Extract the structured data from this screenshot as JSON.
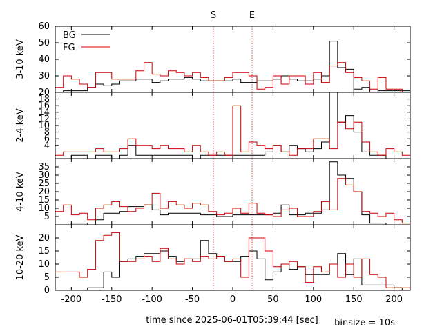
{
  "chart_data": {
    "type": "line",
    "step": true,
    "xlabel": "time since 2025-06-01T05:39:44 [sec]",
    "binsize_label": "binsize = 10s",
    "x_ticks": [
      -200,
      -150,
      -100,
      -50,
      0,
      50,
      100,
      150,
      200
    ],
    "xlim": [
      -220,
      220
    ],
    "markers": [
      {
        "label": "S",
        "x": -24
      },
      {
        "label": "E",
        "x": 24
      }
    ],
    "legend": {
      "placement": "top-left",
      "entries": [
        {
          "name": "BG",
          "color": "#000000"
        },
        {
          "name": "FG",
          "color": "#cc0000"
        }
      ]
    },
    "bin_edges": [
      -220,
      -210,
      -200,
      -190,
      -180,
      -170,
      -160,
      -150,
      -140,
      -130,
      -120,
      -110,
      -100,
      -90,
      -80,
      -70,
      -60,
      -50,
      -40,
      -30,
      -20,
      -10,
      0,
      10,
      20,
      30,
      40,
      50,
      60,
      70,
      80,
      90,
      100,
      110,
      120,
      130,
      140,
      150,
      160,
      170,
      180,
      190,
      200,
      210,
      220
    ],
    "panels": [
      {
        "ylabel": "3-10 keV",
        "ylim": [
          20,
          60
        ],
        "yticks": [
          20,
          30,
          40,
          50,
          60
        ],
        "series": [
          {
            "name": "BG",
            "color": "#000000",
            "values": [
              20,
              21,
              21,
              21,
              23,
              25,
              24,
              25,
              27,
              27,
              28,
              28,
              26,
              27,
              28,
              28,
              29,
              28,
              27,
              27,
              27,
              27,
              28,
              26,
              26,
              27,
              27,
              28,
              30,
              28,
              27,
              27,
              28,
              30,
              51,
              35,
              34,
              22,
              23,
              20,
              21,
              21,
              21,
              21
            ]
          },
          {
            "name": "FG",
            "color": "#cc0000",
            "values": [
              23,
              30,
              28,
              25,
              23,
              32,
              32,
              28,
              28,
              28,
              33,
              38,
              31,
              30,
              33,
              32,
              30,
              32,
              29,
              27,
              27,
              29,
              32,
              32,
              30,
              22,
              23,
              30,
              25,
              30,
              30,
              25,
              32,
              26,
              36,
              38,
              32,
              29,
              27,
              22,
              29,
              22,
              22,
              20
            ]
          }
        ]
      },
      {
        "ylabel": "2-4 keV",
        "ylim": [
          0,
          20
        ],
        "yticks": [
          4,
          6,
          8,
          10,
          12,
          14,
          16,
          18
        ],
        "series": [
          {
            "name": "BG",
            "color": "#000000",
            "values": [
              0,
              0,
              1,
              1,
              0,
              1,
              1,
              0,
              1,
              4,
              1,
              1,
              1,
              1,
              1,
              1,
              1,
              0,
              1,
              1,
              1,
              1,
              1,
              1,
              1,
              1,
              2,
              4,
              2,
              4,
              3,
              2,
              3,
              5,
              20,
              11,
              13,
              8,
              2,
              1,
              1,
              0,
              0,
              0
            ]
          },
          {
            "name": "FG",
            "color": "#cc0000",
            "values": [
              1,
              2,
              2,
              2,
              2,
              3,
              2,
              2,
              3,
              6,
              4,
              4,
              3,
              4,
              3,
              3,
              2,
              4,
              2,
              1,
              2,
              1,
              16,
              2,
              5,
              4,
              3,
              4,
              2,
              1,
              3,
              3,
              6,
              6,
              3,
              11,
              9,
              11,
              5,
              2,
              1,
              3,
              2,
              1
            ]
          }
        ]
      },
      {
        "ylabel": "4-10 keV",
        "ylim": [
          0,
          40
        ],
        "yticks": [
          5,
          10,
          15,
          20,
          25,
          30,
          35
        ],
        "series": [
          {
            "name": "BG",
            "color": "#000000",
            "values": [
              0,
              0,
              1,
              1,
              0,
              3,
              7,
              7,
              8,
              11,
              11,
              12,
              9,
              6,
              7,
              7,
              7,
              7,
              6,
              6,
              5,
              5,
              6,
              6,
              6,
              6,
              6,
              7,
              12,
              6,
              6,
              7,
              7,
              9,
              38,
              30,
              28,
              20,
              6,
              1,
              1,
              0,
              0,
              0
            ]
          },
          {
            "name": "FG",
            "color": "#cc0000",
            "values": [
              8,
              12,
              6,
              7,
              3,
              10,
              12,
              14,
              11,
              8,
              10,
              12,
              19,
              10,
              14,
              12,
              10,
              13,
              12,
              8,
              6,
              7,
              10,
              7,
              13,
              7,
              6,
              5,
              9,
              10,
              5,
              5,
              8,
              14,
              9,
              28,
              24,
              20,
              8,
              7,
              5,
              7,
              3,
              1
            ]
          }
        ]
      },
      {
        "ylabel": "10-20 keV",
        "ylim": [
          0,
          25
        ],
        "yticks": [
          0,
          5,
          10,
          15,
          20
        ],
        "series": [
          {
            "name": "BG",
            "color": "#000000",
            "values": [
              0,
              0,
              0,
              0,
              1,
              1,
              7,
              5,
              11,
              12,
              13,
              14,
              14,
              15,
              13,
              11,
              12,
              12,
              19,
              14,
              13,
              11,
              11,
              13,
              15,
              12,
              4,
              7,
              10,
              8,
              9,
              6,
              6,
              6,
              10,
              14,
              6,
              12,
              2,
              2,
              2,
              2,
              1,
              0
            ]
          },
          {
            "name": "FG",
            "color": "#cc0000",
            "values": [
              7,
              7,
              7,
              5,
              8,
              19,
              21,
              22,
              11,
              11,
              12,
              13,
              11,
              16,
              12,
              10,
              12,
              11,
              13,
              12,
              13,
              11,
              12,
              5,
              20,
              20,
              15,
              9,
              10,
              11,
              9,
              3,
              9,
              7,
              10,
              5,
              10,
              5,
              12,
              6,
              5,
              1,
              1,
              1
            ]
          }
        ]
      }
    ]
  }
}
